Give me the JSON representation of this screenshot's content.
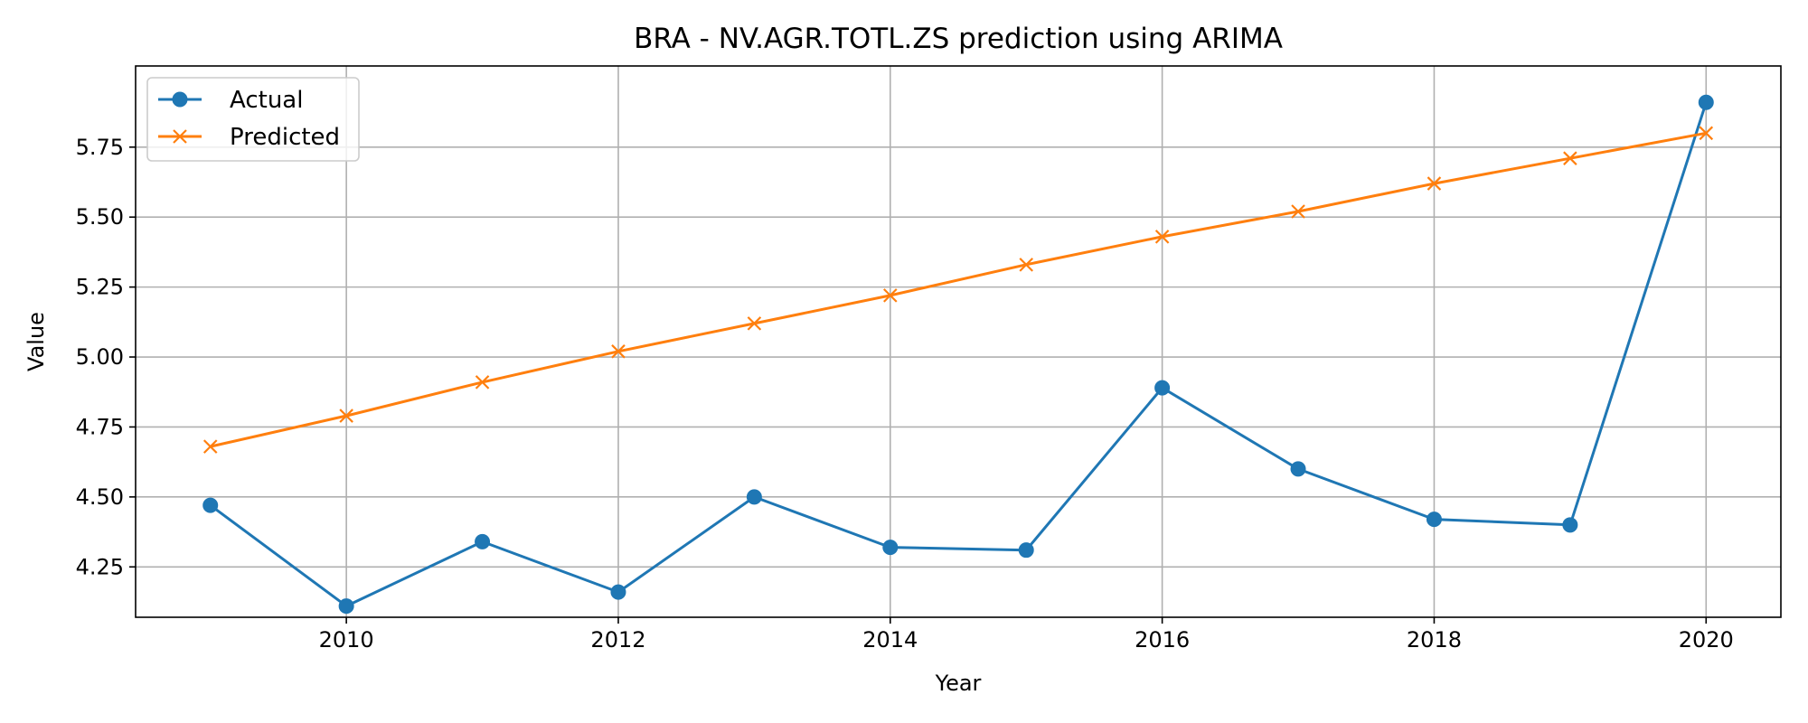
{
  "chart_data": {
    "type": "line",
    "title": "BRA - NV.AGR.TOTL.ZS prediction using ARIMA",
    "xlabel": "Year",
    "ylabel": "Value",
    "x": [
      2009,
      2010,
      2011,
      2012,
      2013,
      2014,
      2015,
      2016,
      2017,
      2018,
      2019,
      2020
    ],
    "xlim": [
      2008.45,
      2020.55
    ],
    "ylim": [
      4.07,
      6.04
    ],
    "xticks": [
      2010,
      2012,
      2014,
      2016,
      2018,
      2020
    ],
    "xtick_labels": [
      "2010",
      "2012",
      "2014",
      "2016",
      "2018",
      "2020"
    ],
    "yticks": [
      4.25,
      4.5,
      4.75,
      5.0,
      5.25,
      5.5,
      5.75
    ],
    "ytick_labels": [
      "4.25",
      "4.50",
      "4.75",
      "5.00",
      "5.25",
      "5.50",
      "5.75"
    ],
    "grid": true,
    "legend_position": "top-left",
    "series": [
      {
        "name": "Actual",
        "color": "#1f77b4",
        "marker": "circle",
        "values": [
          4.47,
          4.11,
          4.34,
          4.16,
          4.5,
          4.32,
          4.31,
          4.89,
          4.6,
          4.42,
          4.4,
          5.91
        ]
      },
      {
        "name": "Predicted",
        "color": "#ff7f0e",
        "marker": "x",
        "values": [
          4.68,
          4.79,
          4.91,
          5.02,
          5.12,
          5.22,
          5.33,
          5.43,
          5.52,
          5.62,
          5.71,
          5.8
        ]
      }
    ]
  }
}
